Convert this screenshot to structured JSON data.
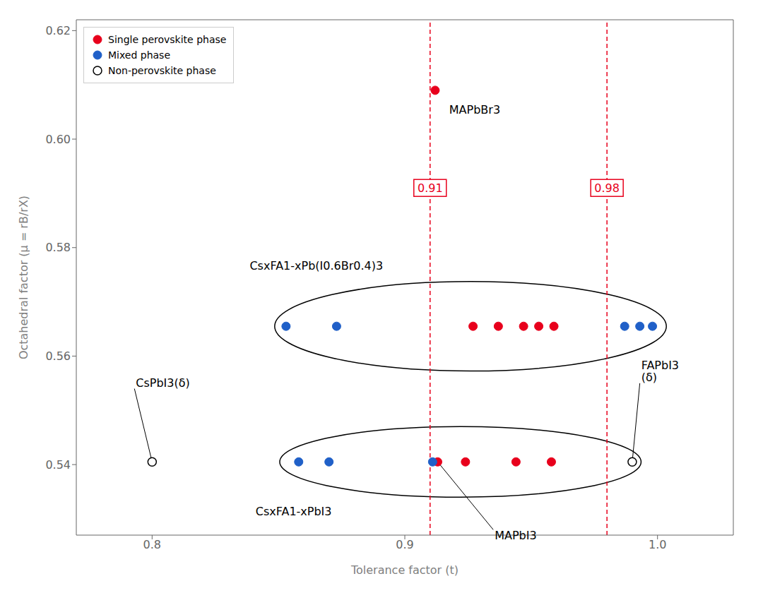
{
  "chart_data": {
    "type": "scatter",
    "xlabel": "Tolerance factor (t)",
    "ylabel": "Octahedral factor (μ = rB/rX)",
    "xlim": [
      0.77,
      1.03
    ],
    "ylim": [
      0.527,
      0.622
    ],
    "xticks": [
      0.8,
      0.9,
      {
        "value": 1.0,
        "label": "1.0"
      }
    ],
    "yticks": [
      0.54,
      0.56,
      0.58,
      {
        "value": 0.6,
        "label": "0.60"
      },
      0.62
    ],
    "grid": false,
    "legend": "upper left",
    "series": [
      {
        "name": "Single perovskite phase",
        "color": "#e8001c",
        "marker": "filled_circle",
        "values": [
          [
            0.912,
            0.609
          ],
          [
            0.927,
            0.5655
          ],
          [
            0.937,
            0.5655
          ],
          [
            0.947,
            0.5655
          ],
          [
            0.953,
            0.5655
          ],
          [
            0.959,
            0.5655
          ],
          [
            0.913,
            0.5405
          ],
          [
            0.924,
            0.5405
          ],
          [
            0.944,
            0.5405
          ],
          [
            0.958,
            0.5405
          ]
        ]
      },
      {
        "name": "Mixed phase",
        "color": "#2060c8",
        "marker": "filled_circle",
        "values": [
          [
            0.853,
            0.5655
          ],
          [
            0.873,
            0.5655
          ],
          [
            0.987,
            0.5655
          ],
          [
            0.993,
            0.5655
          ],
          [
            0.998,
            0.5655
          ],
          [
            0.858,
            0.5405
          ],
          [
            0.87,
            0.5405
          ],
          [
            0.911,
            0.5405
          ]
        ]
      },
      {
        "name": "Non-perovskite phase",
        "color": "#000000",
        "marker": "open_circle",
        "values": [
          [
            0.8,
            0.5405
          ],
          [
            0.99,
            0.5405
          ]
        ]
      }
    ],
    "vlines": [
      {
        "x": 0.91,
        "label": "0.91",
        "y": 0.591,
        "color": "#e8001c"
      },
      {
        "x": 0.98,
        "label": "0.98",
        "y": 0.591,
        "color": "#e8001c"
      }
    ],
    "ellipses": [
      {
        "cx": 0.926,
        "cy": 0.5655,
        "width": 0.155,
        "height": 0.0165
      },
      {
        "cx": 0.922,
        "cy": 0.5405,
        "width": 0.143,
        "height": 0.013
      }
    ],
    "annotations": [
      {
        "text": "MAPbBr3",
        "x": 0.917,
        "y": 0.6065
      },
      {
        "text": "CsxFA1-xPb(I0.6Br0.4)3",
        "x": 0.865,
        "y": 0.5755
      },
      {
        "text": "CsxFA1-xPbI3",
        "x": 0.856,
        "y": 0.5325
      },
      {
        "text": "MAPbI3",
        "x": 0.935,
        "y": 0.528,
        "xy": [
          0.913,
          0.5405
        ]
      },
      {
        "text": "CsPbI3(δ)",
        "x": 0.793,
        "y": 0.554,
        "xy": [
          0.8,
          0.5405
        ]
      },
      {
        "text": "FAPbI3\n(δ)",
        "x": 0.993,
        "y": 0.555,
        "xy": [
          0.99,
          0.5405
        ]
      }
    ]
  }
}
